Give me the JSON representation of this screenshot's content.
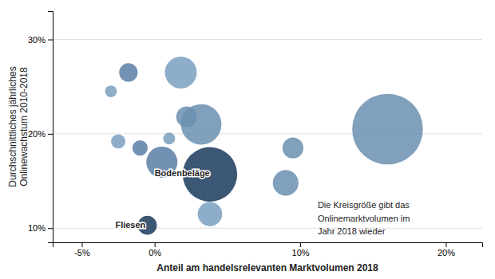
{
  "chart_data": {
    "type": "scatter",
    "xlabel": "Anteil am handelsrelevanten Marktvolumen 2018",
    "ylabel": "Durchschnittliches jährliches\nOnlinewachstum 2010-2018",
    "x": [
      -0.018,
      -0.03,
      -0.025,
      0.01,
      -0.01,
      0.005,
      0.018,
      0.022,
      0.032,
      0.038,
      0.038,
      -0.005,
      0.09,
      0.095,
      0.16
    ],
    "values": [
      0.265,
      0.245,
      0.192,
      0.195,
      0.185,
      0.17,
      0.265,
      0.218,
      0.21,
      0.157,
      0.115,
      0.103,
      0.148,
      0.185,
      0.205
    ],
    "sizes": [
      220,
      90,
      130,
      90,
      150,
      620,
      650,
      280,
      1050,
      1900,
      380,
      230,
      420,
      280,
      3200
    ],
    "colors": [
      "#5b7fa6",
      "#7a9fc0",
      "#7a9fc0",
      "#7a9fc0",
      "#5b7fa6",
      "#5b7fa6",
      "#7a9fc0",
      "#6b8fb0",
      "#6b8fb0",
      "#1a3a5c",
      "#7a9fc0",
      "#1a3a5c",
      "#6b8fb0",
      "#6b8fb0",
      "#6b8fb0"
    ],
    "xlim": [
      -0.07,
      0.225
    ],
    "ylim": [
      0.085,
      0.33
    ],
    "xticks": [
      {
        "value": -0.05,
        "label": "-5%"
      },
      {
        "value": 0.0,
        "label": "0%"
      },
      {
        "value": 0.1,
        "label": "10%"
      },
      {
        "value": 0.2,
        "label": "20%"
      }
    ],
    "yticks": [
      {
        "value": 0.1,
        "label": "10%"
      },
      {
        "value": 0.2,
        "label": "20%"
      },
      {
        "value": 0.3,
        "label": "30%"
      }
    ],
    "grid": true,
    "annotations": [
      {
        "text": "Bodenbeläge",
        "x": 0.0,
        "y": 0.158
      },
      {
        "text": "Fliesen",
        "x": -0.027,
        "y": 0.103
      },
      {
        "text": "Die Kreisgröße gibt das\nOnlinemarktvolumen im\nJahr 2018 wieder",
        "x": 0.112,
        "y": 0.128
      }
    ]
  }
}
